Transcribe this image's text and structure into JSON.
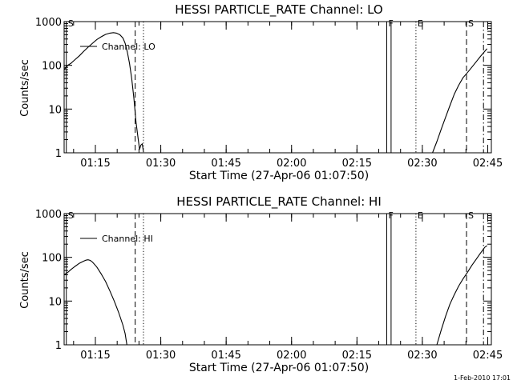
{
  "timestamp": "1-Feb-2010 17:01",
  "chart_data": [
    {
      "type": "line",
      "title": "HESSI PARTICLE_RATE Channel: LO",
      "xlabel": "Start Time (27-Apr-06 01:07:50)",
      "ylabel": "Counts/sec",
      "x_units": "minutes after 01:07:50",
      "xlim": [
        0,
        98
      ],
      "ylim": [
        1,
        1000
      ],
      "yscale": "log",
      "x_tick_labels": [
        "01:15",
        "01:30",
        "01:45",
        "02:00",
        "02:15",
        "02:30",
        "02:45"
      ],
      "x_tick_values": [
        7.17,
        22.17,
        37.17,
        52.17,
        67.17,
        82.17,
        97.17
      ],
      "y_tick_labels": [
        "1",
        "10",
        "100",
        "1000"
      ],
      "y_tick_values": [
        1,
        10,
        100,
        1000
      ],
      "legend": "Channel: LO",
      "flag_lines": [
        {
          "label": "S",
          "x": 0.5,
          "style": "solid"
        },
        {
          "label": "",
          "x": 16.3,
          "style": "dashed"
        },
        {
          "label": "",
          "x": 18.2,
          "style": "dotted"
        },
        {
          "label": "F",
          "x": 74.0,
          "style": "solid"
        },
        {
          "label": "",
          "x": 75.0,
          "style": "solid"
        },
        {
          "label": "E",
          "x": 80.7,
          "style": "dotted"
        },
        {
          "label": "S",
          "x": 92.3,
          "style": "dashed"
        },
        {
          "label": "",
          "x": 96.2,
          "style": "dashdot"
        }
      ],
      "series": [
        {
          "segments": [
            [
              [
                0,
                80
              ],
              [
                0.8,
                100
              ],
              [
                1.5,
                110
              ],
              [
                2.5,
                135
              ],
              [
                3.5,
                165
              ],
              [
                4.5,
                210
              ],
              [
                5.5,
                260
              ],
              [
                6.5,
                320
              ],
              [
                7.5,
                390
              ],
              [
                8.5,
                450
              ],
              [
                9.5,
                510
              ],
              [
                10.5,
                545
              ],
              [
                11.3,
                560
              ],
              [
                12,
                545
              ],
              [
                12.8,
                500
              ],
              [
                13.5,
                420
              ],
              [
                14,
                320
              ],
              [
                14.5,
                200
              ],
              [
                15,
                110
              ],
              [
                15.5,
                50
              ],
              [
                16,
                18
              ],
              [
                16.5,
                5
              ],
              [
                17,
                2
              ],
              [
                17.3,
                1.2
              ],
              [
                17.6,
                1.5
              ],
              [
                17.9,
                1.6
              ],
              [
                18.2,
                1.05
              ]
            ],
            [
              [
                84.5,
                1
              ],
              [
                85.5,
                1.8
              ],
              [
                86.5,
                3.5
              ],
              [
                87.5,
                6.5
              ],
              [
                88.5,
                12
              ],
              [
                89.5,
                22
              ],
              [
                90.5,
                35
              ],
              [
                91.5,
                52
              ],
              [
                92.5,
                68
              ],
              [
                93.5,
                90
              ],
              [
                94.5,
                120
              ],
              [
                95.5,
                160
              ],
              [
                96.5,
                210
              ],
              [
                97,
                240
              ]
            ]
          ]
        }
      ]
    },
    {
      "type": "line",
      "title": "HESSI PARTICLE_RATE Channel: HI",
      "xlabel": "Start Time (27-Apr-06 01:07:50)",
      "ylabel": "Counts/sec",
      "x_units": "minutes after 01:07:50",
      "xlim": [
        0,
        98
      ],
      "ylim": [
        1,
        1000
      ],
      "yscale": "log",
      "x_tick_labels": [
        "01:15",
        "01:30",
        "01:45",
        "02:00",
        "02:15",
        "02:30",
        "02:45"
      ],
      "x_tick_values": [
        7.17,
        22.17,
        37.17,
        52.17,
        67.17,
        82.17,
        97.17
      ],
      "y_tick_labels": [
        "1",
        "10",
        "100",
        "1000"
      ],
      "y_tick_values": [
        1,
        10,
        100,
        1000
      ],
      "legend": "Channel: HI",
      "flag_lines": [
        {
          "label": "S",
          "x": 0.5,
          "style": "solid"
        },
        {
          "label": "",
          "x": 16.3,
          "style": "dashed"
        },
        {
          "label": "",
          "x": 18.2,
          "style": "dotted"
        },
        {
          "label": "F",
          "x": 74.0,
          "style": "solid"
        },
        {
          "label": "",
          "x": 75.0,
          "style": "solid"
        },
        {
          "label": "E",
          "x": 80.7,
          "style": "dotted"
        },
        {
          "label": "S",
          "x": 92.3,
          "style": "dashed"
        },
        {
          "label": "",
          "x": 96.2,
          "style": "dashdot"
        }
      ],
      "series": [
        {
          "segments": [
            [
              [
                0,
                40
              ],
              [
                0.8,
                45
              ],
              [
                1.5,
                52
              ],
              [
                2.5,
                62
              ],
              [
                3.5,
                73
              ],
              [
                4.5,
                82
              ],
              [
                5,
                86
              ],
              [
                5.5,
                88
              ],
              [
                6,
                85
              ],
              [
                6.5,
                78
              ],
              [
                7.5,
                60
              ],
              [
                8.5,
                42
              ],
              [
                9.5,
                28
              ],
              [
                10.5,
                17
              ],
              [
                11.5,
                10
              ],
              [
                12.5,
                5.5
              ],
              [
                13.5,
                2.8
              ],
              [
                14,
                1.8
              ],
              [
                14.4,
                1
              ]
            ],
            [
              [
                85.5,
                1
              ],
              [
                86.5,
                2.2
              ],
              [
                87.5,
                4.5
              ],
              [
                88.5,
                8.5
              ],
              [
                89.5,
                14
              ],
              [
                90.5,
                22
              ],
              [
                91.5,
                32
              ],
              [
                92.5,
                45
              ],
              [
                93.5,
                65
              ],
              [
                94.5,
                90
              ],
              [
                95.5,
                125
              ],
              [
                96.5,
                170
              ],
              [
                97,
                185
              ]
            ]
          ]
        }
      ]
    }
  ]
}
